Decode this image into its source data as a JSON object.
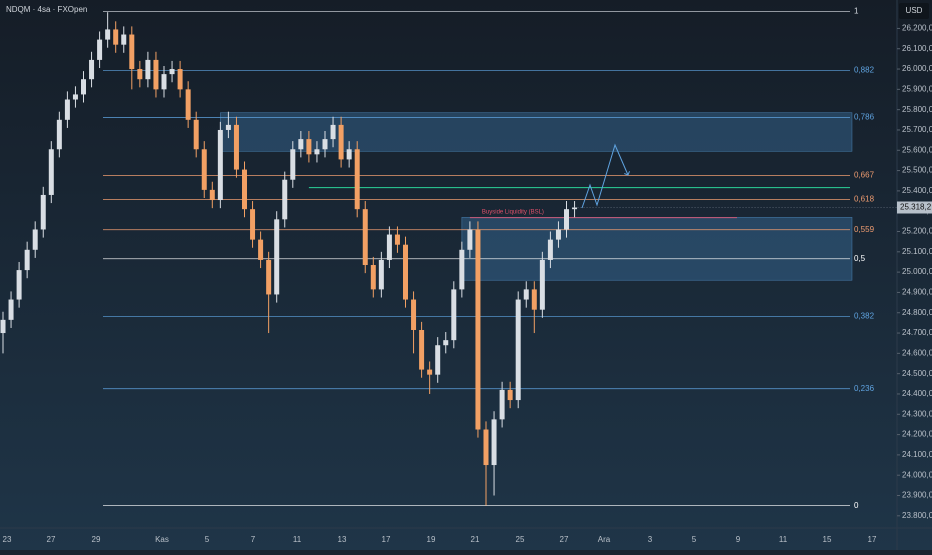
{
  "chart_data": {
    "type": "candlestick",
    "title": "NDQM · 4sa · FXOpen",
    "currency": "USD",
    "up_color": "#d9dee4",
    "down_color": "#f2a064",
    "open": [
      24700,
      24765,
      24865,
      25010,
      25110,
      25210,
      25380,
      25605,
      25750,
      25850,
      25875,
      25950,
      26045,
      26145,
      26195,
      26120,
      26170,
      26000,
      25950,
      26045,
      25900,
      25975,
      26000,
      25900,
      25750,
      25605,
      25405,
      25355,
      25700,
      25725,
      25505,
      25310,
      25160,
      25060,
      24890,
      25260,
      25455,
      25605,
      25655,
      25580,
      25605,
      25655,
      25725,
      25555,
      25605,
      25310,
      25035,
      24915,
      25060,
      25185,
      25135,
      24865,
      24715,
      24520,
      24495,
      24640,
      24665,
      24915,
      25110,
      25210,
      24225,
      24050,
      24275,
      24420,
      24370,
      24865,
      24915,
      24815,
      25060,
      25160,
      25210,
      25310
    ],
    "close": [
      24765,
      24865,
      25010,
      25110,
      25210,
      25380,
      25605,
      25750,
      25850,
      25875,
      25950,
      26045,
      26145,
      26195,
      26120,
      26170,
      26000,
      25950,
      26045,
      25900,
      25975,
      26000,
      25900,
      25750,
      25605,
      25405,
      25355,
      25700,
      25725,
      25505,
      25310,
      25160,
      25060,
      24890,
      25260,
      25455,
      25605,
      25655,
      25580,
      25605,
      25655,
      25725,
      25555,
      25605,
      25310,
      25035,
      24915,
      25060,
      25185,
      25135,
      24865,
      24715,
      24520,
      24495,
      24640,
      24665,
      24915,
      25110,
      25210,
      24225,
      24050,
      24275,
      24420,
      24370,
      24865,
      24915,
      24815,
      25060,
      25160,
      25210,
      25310,
      25318.2
    ],
    "high": [
      24805,
      24905,
      25050,
      25150,
      25250,
      25420,
      25645,
      25790,
      25890,
      25915,
      25990,
      26085,
      26185,
      26280,
      26235,
      26210,
      26210,
      26040,
      26085,
      26085,
      26015,
      26040,
      26040,
      25940,
      25790,
      25645,
      25445,
      25740,
      25790,
      25765,
      25545,
      25350,
      25200,
      25100,
      25300,
      25495,
      25645,
      25695,
      25695,
      25645,
      25695,
      25765,
      25765,
      25645,
      25645,
      25350,
      25075,
      25100,
      25225,
      25225,
      25175,
      24905,
      24755,
      24560,
      24680,
      24705,
      24955,
      25150,
      25250,
      25250,
      24265,
      24315,
      24460,
      24460,
      24905,
      24955,
      24955,
      25100,
      25200,
      25250,
      25350,
      25350
    ],
    "low": [
      24600,
      24725,
      24825,
      24970,
      25070,
      25170,
      25340,
      25565,
      25710,
      25810,
      25835,
      25910,
      26005,
      26105,
      26080,
      26080,
      25900,
      25910,
      25910,
      25860,
      25860,
      25935,
      25860,
      25710,
      25565,
      25365,
      25315,
      25315,
      25660,
      25465,
      25270,
      25120,
      25020,
      24700,
      24850,
      25220,
      25415,
      25565,
      25540,
      25540,
      25565,
      25615,
      25515,
      25515,
      25270,
      24995,
      24875,
      24875,
      25020,
      25095,
      24825,
      24600,
      24480,
      24400,
      24455,
      24600,
      24625,
      24875,
      25070,
      24185,
      23850,
      23900,
      24235,
      24330,
      24330,
      24825,
      24700,
      24775,
      25020,
      25120,
      25170,
      25270
    ],
    "last_price": {
      "value": 25318.2,
      "label": "25.318,2"
    },
    "ylim": [
      23740,
      26340
    ],
    "yticks": [
      {
        "value": 23800,
        "label": "23.800,0"
      },
      {
        "value": 23900,
        "label": "23.900,0"
      },
      {
        "value": 24000,
        "label": "24.000,0"
      },
      {
        "value": 24100,
        "label": "24.100,0"
      },
      {
        "value": 24200,
        "label": "24.200,0"
      },
      {
        "value": 24300,
        "label": "24.300,0"
      },
      {
        "value": 24400,
        "label": "24.400,0"
      },
      {
        "value": 24500,
        "label": "24.500,0"
      },
      {
        "value": 24600,
        "label": "24.600,0"
      },
      {
        "value": 24700,
        "label": "24.700,0"
      },
      {
        "value": 24800,
        "label": "24.800,0"
      },
      {
        "value": 24900,
        "label": "24.900,0"
      },
      {
        "value": 25000,
        "label": "25.000,0"
      },
      {
        "value": 25100,
        "label": "25.100,0"
      },
      {
        "value": 25200,
        "label": "25.200,0"
      },
      {
        "value": 25300,
        "label": "25.300,0"
      },
      {
        "value": 25400,
        "label": "25.400,0"
      },
      {
        "value": 25500,
        "label": "25.500,0"
      },
      {
        "value": 25600,
        "label": "25.600,0"
      },
      {
        "value": 25700,
        "label": "25.700,0"
      },
      {
        "value": 25800,
        "label": "25.800,0"
      },
      {
        "value": 25900,
        "label": "25.900,0"
      },
      {
        "value": 26000,
        "label": "26.000,0"
      },
      {
        "value": 26100,
        "label": "26.100,0"
      },
      {
        "value": 26200,
        "label": "26.200,0"
      }
    ],
    "time_labels": [
      "23",
      "27",
      "29",
      "Kas",
      "5",
      "7",
      "11",
      "13",
      "17",
      "19",
      "21",
      "25",
      "27",
      "Ara",
      "3",
      "5",
      "9",
      "11",
      "15",
      "17"
    ],
    "fib_levels": [
      {
        "label": "1",
        "price": 26284,
        "color": "#d8dde3"
      },
      {
        "label": "0,882",
        "price": 25993,
        "color": "#5fa3e0"
      },
      {
        "label": "0,786",
        "price": 25761,
        "color": "#5fa3e0"
      },
      {
        "label": "0,667",
        "price": 25476,
        "color": "#ee9c70"
      },
      {
        "label": "0,618",
        "price": 25358,
        "color": "#ee9c70"
      },
      {
        "label": "0,559",
        "price": 25209,
        "color": "#ee9c70"
      },
      {
        "label": "0,5",
        "price": 25066,
        "color": "#ffffff"
      },
      {
        "label": "0,382",
        "price": 24781,
        "color": "#5fa3e0"
      },
      {
        "label": "0,236",
        "price": 24426,
        "color": "#5fa3e0"
      },
      {
        "label": "0",
        "price": 23850,
        "color": "#ffffff"
      }
    ],
    "zones": [
      {
        "top": 25785,
        "bottom": 25595,
        "start": 27
      },
      {
        "top": 25270,
        "bottom": 24960,
        "start": 57
      }
    ],
    "green_line": {
      "price": 25416,
      "start": 38,
      "color": "#2bd39a"
    },
    "bsl_line": {
      "label": "Buyside Liquidity (BSL)",
      "price": 25268,
      "start": 58,
      "color": "#e0506a"
    }
  }
}
